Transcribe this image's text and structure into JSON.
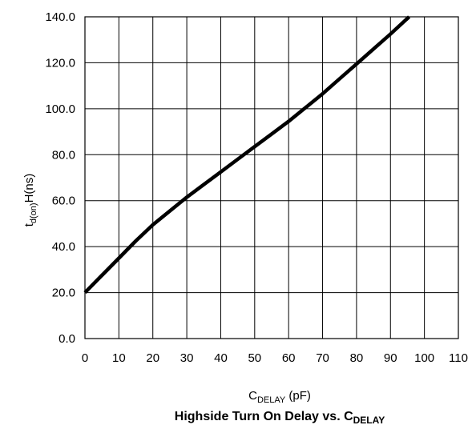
{
  "chart_data": {
    "type": "line",
    "title": {
      "main": "Highside Turn On Delay vs. C",
      "sub": "DELAY"
    },
    "xlabel": {
      "main": "C",
      "sub": "DELAY",
      "rest": " (pF)"
    },
    "ylabel": {
      "pre": "t",
      "sub": "d(on)",
      "rest": "H(ns)"
    },
    "xlim": [
      0,
      110
    ],
    "ylim": [
      0,
      140
    ],
    "xticks": [
      0,
      10,
      20,
      30,
      40,
      50,
      60,
      70,
      80,
      90,
      100,
      110
    ],
    "xtick_labels": [
      "0",
      "10",
      "20",
      "30",
      "40",
      "50",
      "60",
      "70",
      "80",
      "90",
      "100",
      "110"
    ],
    "yticks": [
      0,
      20,
      40,
      60,
      80,
      100,
      120,
      140
    ],
    "ytick_labels": [
      "0.0",
      "20.0",
      "40.0",
      "60.0",
      "80.0",
      "100.0",
      "120.0",
      "140.0"
    ],
    "grid": true,
    "series": [
      {
        "x": [
          0,
          5,
          10,
          15,
          20,
          25,
          30,
          35,
          40,
          45,
          50,
          55,
          60,
          65,
          70,
          75,
          80,
          85,
          90,
          95.5
        ],
        "y": [
          20,
          27.5,
          35,
          42.5,
          49.5,
          55.5,
          61.5,
          67,
          72.5,
          78,
          83.5,
          89,
          94.5,
          100.5,
          106.5,
          113,
          119.5,
          126,
          132.5,
          140
        ],
        "color": "#000000"
      }
    ]
  }
}
